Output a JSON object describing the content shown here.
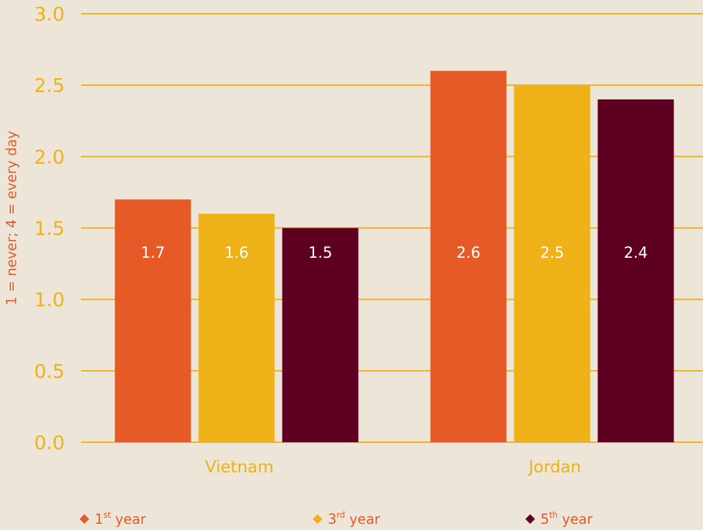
{
  "chart_data": {
    "type": "bar",
    "y_axis_label": "1 = never; 4 = every day",
    "categories": [
      "Vietnam",
      "Jordan"
    ],
    "series": [
      {
        "name": "1st year",
        "color": "#e55a27",
        "values": [
          1.7,
          2.6
        ]
      },
      {
        "name": "3rd year",
        "color": "#efb118",
        "values": [
          1.6,
          2.5
        ]
      },
      {
        "name": "5th year",
        "color": "#5e0022",
        "values": [
          1.5,
          2.4
        ]
      }
    ],
    "ylim": [
      0,
      3
    ],
    "yticks": [
      {
        "value": 0,
        "label": "0.0"
      },
      0.5,
      {
        "value": 1,
        "label": "1.0"
      },
      1.5,
      {
        "value": 2,
        "label": "2.0"
      },
      2.5,
      {
        "value": 3,
        "label": "3.0"
      }
    ],
    "grid": true
  }
}
